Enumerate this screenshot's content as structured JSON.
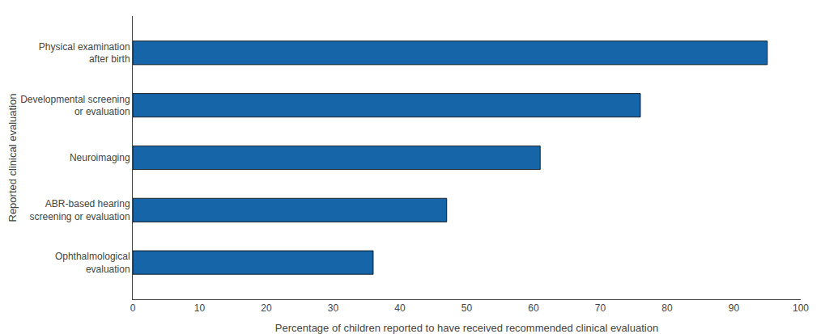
{
  "chart_data": {
    "type": "bar",
    "orientation": "horizontal",
    "categories": [
      "Ophthalmological\nevaluation",
      "ABR-based hearing\nscreening or evaluation",
      "Neuroimaging",
      "Developmental screening\nor evaluation",
      "Physical examination\nafter birth"
    ],
    "values": [
      36,
      47,
      61,
      76,
      95
    ],
    "color": "#1565a8",
    "xlabel": "Percentage of children reported to have received recommended clinical evaluation",
    "ylabel": "Reported clinical evaluation",
    "xlim": [
      0,
      100
    ],
    "xticks": [
      0,
      10,
      20,
      30,
      40,
      50,
      60,
      70,
      80,
      90,
      100
    ],
    "grid": false
  }
}
